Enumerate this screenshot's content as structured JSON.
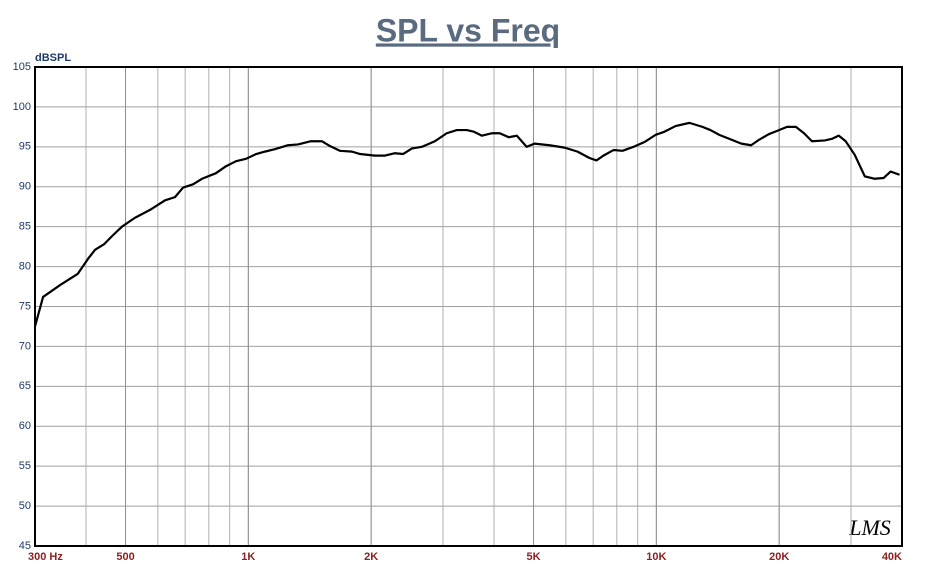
{
  "chart_data": {
    "type": "line",
    "title": "SPL vs Freq",
    "ylabel": "dBSPL",
    "annotation": "LMS",
    "log_x": true,
    "grid": true,
    "xlim": [
      300,
      40000
    ],
    "ylim": [
      45,
      105
    ],
    "xticks": [
      {
        "value": 300,
        "label": "300 Hz"
      },
      500,
      {
        "value": 1000,
        "label": "1K"
      },
      {
        "value": 2000,
        "label": "2K"
      },
      {
        "value": 5000,
        "label": "5K"
      },
      {
        "value": 10000,
        "label": "10K"
      },
      {
        "value": 20000,
        "label": "20K"
      },
      {
        "value": 40000,
        "label": "40K"
      }
    ],
    "yticks": [
      45,
      50,
      55,
      60,
      65,
      70,
      75,
      80,
      85,
      90,
      95,
      100,
      105
    ],
    "x": [
      300,
      314,
      346,
      382,
      405,
      421,
      443,
      463,
      490,
      527,
      574,
      625,
      661,
      692,
      732,
      770,
      833,
      877,
      933,
      987,
      1045,
      1098,
      1161,
      1251,
      1323,
      1424,
      1514,
      1585,
      1678,
      1795,
      1879,
      2043,
      2163,
      2287,
      2394,
      2518,
      2662,
      2865,
      3064,
      3244,
      3430,
      3568,
      3733,
      3948,
      4131,
      4346,
      4549,
      4810,
      5029,
      5473,
      5957,
      6409,
      6857,
      7132,
      7418,
      7853,
      8262,
      8790,
      9354,
      9956,
      10473,
      11143,
      12054,
      12975,
      13567,
      14266,
      15104,
      16148,
      17072,
      17870,
      18886,
      19776,
      20900,
      21980,
      23010,
      24060,
      25890,
      26930,
      27990,
      29110,
      30630,
      32430,
      34300,
      36070,
      37500,
      39450
    ],
    "series": [
      {
        "name": "SPL",
        "color": "#000000",
        "values": [
          72.5,
          76.2,
          77.7,
          79.1,
          81.0,
          82.1,
          82.8,
          83.8,
          85.0,
          86.1,
          87.1,
          88.3,
          88.7,
          89.9,
          90.3,
          91.0,
          91.7,
          92.5,
          93.2,
          93.5,
          94.1,
          94.4,
          94.7,
          95.2,
          95.3,
          95.7,
          95.7,
          95.1,
          94.5,
          94.4,
          94.1,
          93.9,
          93.9,
          94.2,
          94.1,
          94.8,
          95.0,
          95.7,
          96.7,
          97.1,
          97.1,
          96.9,
          96.4,
          96.7,
          96.7,
          96.2,
          96.4,
          95.0,
          95.4,
          95.2,
          94.9,
          94.4,
          93.6,
          93.3,
          93.9,
          94.6,
          94.5,
          95.0,
          95.6,
          96.5,
          96.9,
          97.6,
          98.0,
          97.5,
          97.1,
          96.5,
          96.0,
          95.4,
          95.2,
          95.9,
          96.6,
          97.0,
          97.5,
          97.5,
          96.7,
          95.7,
          95.8,
          96.0,
          96.4,
          95.7,
          94.0,
          91.3,
          91.0,
          91.1,
          91.9,
          91.5
        ]
      }
    ]
  }
}
